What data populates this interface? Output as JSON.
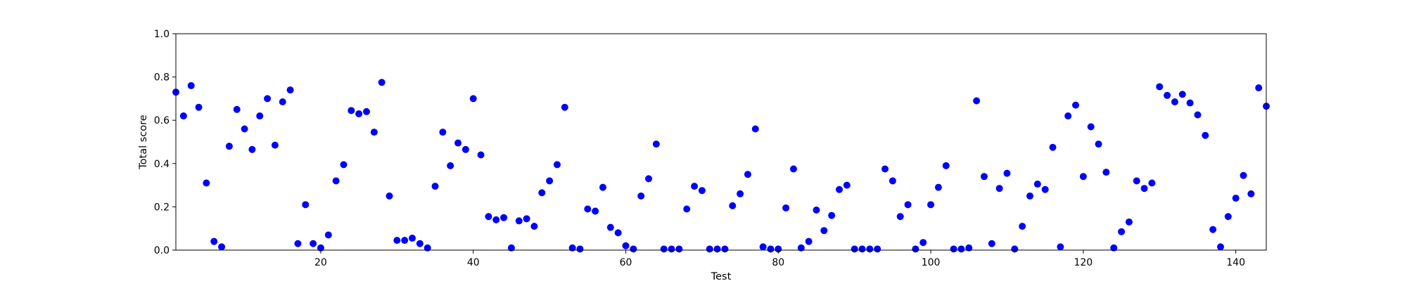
{
  "chart_data": {
    "type": "scatter",
    "xlabel": "Test",
    "ylabel": "Total score",
    "xlim": [
      1,
      144
    ],
    "ylim": [
      0.0,
      1.0
    ],
    "xticks": [
      20,
      40,
      60,
      80,
      100,
      120,
      140
    ],
    "xtick_labels": [
      "20",
      "40",
      "60",
      "80",
      "100",
      "120",
      "140"
    ],
    "yticks": [
      0.0,
      0.2,
      0.4,
      0.6,
      0.8,
      1.0
    ],
    "ytick_labels": [
      "0.0",
      "0.2",
      "0.4",
      "0.6",
      "0.8",
      "1.0"
    ],
    "grid": false,
    "marker_color": "#0000ff",
    "series": [
      {
        "x": [
          1,
          2,
          3,
          4,
          5,
          6,
          7,
          8,
          9,
          10,
          11,
          12,
          13,
          14,
          15,
          16,
          17,
          18,
          19,
          20,
          21,
          22,
          23,
          24,
          25,
          26,
          27,
          28,
          29,
          30,
          31,
          32,
          33,
          34,
          35,
          36,
          37,
          38,
          39,
          40,
          41,
          42,
          43,
          44,
          45,
          46,
          47,
          48,
          49,
          50,
          51,
          52,
          53,
          54,
          55,
          56,
          57,
          58,
          59,
          60,
          61,
          62,
          63,
          64,
          65,
          66,
          67,
          68,
          69,
          70,
          71,
          72,
          73,
          74,
          75,
          76,
          77,
          78,
          79,
          80,
          81,
          82,
          83,
          84,
          85,
          86,
          87,
          88,
          89,
          90,
          91,
          92,
          93,
          94,
          95,
          96,
          97,
          98,
          99,
          100,
          101,
          102,
          103,
          104,
          105,
          106,
          107,
          108,
          109,
          110,
          111,
          112,
          113,
          114,
          115,
          116,
          117,
          118,
          119,
          120,
          121,
          122,
          123,
          124,
          125,
          126,
          127,
          128,
          129,
          130,
          131,
          132,
          133,
          134,
          135,
          136,
          137,
          138,
          139,
          140,
          141,
          142,
          143,
          144
        ],
        "y": [
          0.73,
          0.62,
          0.76,
          0.66,
          0.31,
          0.04,
          0.015,
          0.48,
          0.65,
          0.56,
          0.465,
          0.62,
          0.7,
          0.485,
          0.685,
          0.74,
          0.03,
          0.21,
          0.03,
          0.01,
          0.07,
          0.32,
          0.395,
          0.645,
          0.63,
          0.64,
          0.545,
          0.775,
          0.25,
          0.045,
          0.045,
          0.055,
          0.03,
          0.01,
          0.295,
          0.545,
          0.39,
          0.495,
          0.465,
          0.7,
          0.44,
          0.155,
          0.14,
          0.15,
          0.01,
          0.135,
          0.145,
          0.11,
          0.265,
          0.32,
          0.395,
          0.66,
          0.01,
          0.005,
          0.19,
          0.18,
          0.29,
          0.105,
          0.08,
          0.02,
          0.005,
          0.25,
          0.33,
          0.49,
          0.005,
          0.005,
          0.005,
          0.19,
          0.295,
          0.275,
          0.005,
          0.005,
          0.005,
          0.205,
          0.26,
          0.35,
          0.56,
          0.015,
          0.005,
          0.005,
          0.195,
          0.375,
          0.01,
          0.04,
          0.185,
          0.09,
          0.16,
          0.28,
          0.3,
          0.005,
          0.005,
          0.005,
          0.005,
          0.375,
          0.32,
          0.155,
          0.21,
          0.005,
          0.035,
          0.21,
          0.29,
          0.39,
          0.005,
          0.005,
          0.01,
          0.69,
          0.34,
          0.03,
          0.285,
          0.355,
          0.005,
          0.11,
          0.25,
          0.305,
          0.28,
          0.475,
          0.015,
          0.62,
          0.67,
          0.34,
          0.57,
          0.49,
          0.36,
          0.01,
          0.085,
          0.13,
          0.32,
          0.285,
          0.31,
          0.755,
          0.715,
          0.685,
          0.72,
          0.68,
          0.625,
          0.53,
          0.095,
          0.015,
          0.155,
          0.24,
          0.345,
          0.26,
          0.75,
          0.665
        ]
      }
    ]
  }
}
